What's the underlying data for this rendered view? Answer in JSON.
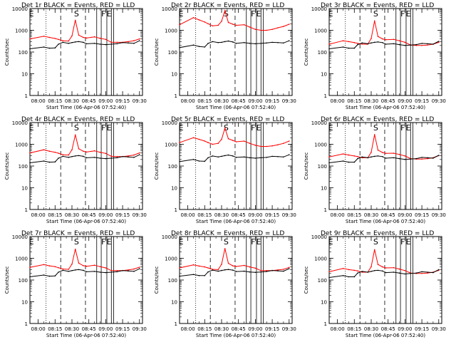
{
  "page": {
    "background": "#ffffff",
    "events_color": "#000000",
    "lld_color": "#ff0000"
  },
  "shared": {
    "title_suffix": "BLACK = Events, RED = LLD",
    "ylabel": "Counts/sec",
    "xlabel": "Start Time (06-Apr-06 07:52:40)",
    "x_tick_labels": [
      "08:00",
      "08:15",
      "08:30",
      "08:45",
      "09:00",
      "09:15",
      "09:30"
    ],
    "y_tick_labels": [
      "1",
      "10",
      "100",
      "1000",
      "10000"
    ],
    "markers": [
      "E",
      "S",
      "F",
      "E"
    ]
  },
  "chart_data": [
    {
      "type": "line",
      "title": "Det 1r BLACK = Events, RED = LLD",
      "ylabel": "Counts/sec",
      "xlabel": "Start Time (06-Apr-06 07:52:40)",
      "y_scale": "log",
      "ylim": [
        1,
        10000
      ],
      "xlim": [
        "07:52:40",
        "09:32:40"
      ],
      "x": [
        "07:52:40",
        "08:05",
        "08:10",
        "08:15",
        "08:18",
        "08:22",
        "08:27",
        "08:30",
        "08:33",
        "08:36",
        "08:40",
        "08:43",
        "08:50",
        "08:55",
        "09:00",
        "09:05",
        "09:10",
        "09:15",
        "09:20",
        "09:25",
        "09:30"
      ],
      "series": [
        {
          "name": "BLACK = Events",
          "values": [
            140,
            170,
            150,
            155,
            230,
            280,
            250,
            270,
            290,
            300,
            280,
            240,
            250,
            230,
            220,
            230,
            240,
            270,
            260,
            250,
            330
          ]
        },
        {
          "name": "RED = LLD",
          "values": [
            400,
            530,
            470,
            420,
            380,
            330,
            320,
            550,
            2900,
            600,
            470,
            440,
            500,
            430,
            380,
            280,
            280,
            280,
            300,
            330,
            400
          ]
        }
      ]
    },
    {
      "type": "line",
      "title": "Det 2r BLACK = Events, RED = LLD",
      "ylabel": "Counts/sec",
      "xlabel": "Start Time (06-Apr-06 07:52:40)",
      "y_scale": "log",
      "ylim": [
        1,
        10000
      ],
      "xlim": [
        "07:52:40",
        "09:32:40"
      ],
      "x": [
        "07:52:40",
        "08:05",
        "08:10",
        "08:15",
        "08:18",
        "08:22",
        "08:27",
        "08:30",
        "08:33",
        "08:36",
        "08:40",
        "08:43",
        "08:50",
        "08:55",
        "09:00",
        "09:05",
        "09:10",
        "09:15",
        "09:20",
        "09:25",
        "09:30"
      ],
      "series": [
        {
          "name": "BLACK = Events",
          "values": [
            160,
            210,
            180,
            170,
            250,
            300,
            270,
            280,
            300,
            320,
            290,
            250,
            270,
            250,
            240,
            250,
            260,
            280,
            270,
            260,
            330
          ]
        },
        {
          "name": "RED = LLD",
          "values": [
            1800,
            3800,
            3000,
            2400,
            2000,
            1600,
            1700,
            2600,
            8000,
            2300,
            1900,
            1700,
            1800,
            1400,
            1100,
            1000,
            1000,
            1100,
            1300,
            1500,
            1900
          ]
        }
      ]
    },
    {
      "type": "line",
      "title": "Det 3r BLACK = Events, RED = LLD",
      "ylabel": "Counts/sec",
      "xlabel": "Start Time (06-Apr-06 07:52:40)",
      "y_scale": "log",
      "ylim": [
        1,
        10000
      ],
      "xlim": [
        "07:52:40",
        "09:32:40"
      ],
      "x": [
        "07:52:40",
        "08:05",
        "08:10",
        "08:15",
        "08:18",
        "08:22",
        "08:27",
        "08:30",
        "08:33",
        "08:36",
        "08:40",
        "08:43",
        "08:50",
        "08:55",
        "09:00",
        "09:05",
        "09:10",
        "09:15",
        "09:20",
        "09:25",
        "09:30"
      ],
      "series": [
        {
          "name": "BLACK = Events",
          "values": [
            140,
            170,
            150,
            150,
            220,
            260,
            240,
            260,
            280,
            290,
            270,
            230,
            240,
            220,
            200,
            210,
            220,
            250,
            240,
            230,
            310
          ]
        },
        {
          "name": "RED = LLD",
          "values": [
            230,
            330,
            300,
            270,
            250,
            230,
            230,
            420,
            2700,
            520,
            400,
            370,
            380,
            330,
            280,
            210,
            200,
            200,
            210,
            230,
            280
          ]
        }
      ]
    },
    {
      "type": "line",
      "title": "Det 4r BLACK = Events, RED = LLD",
      "ylabel": "Counts/sec",
      "xlabel": "Start Time (06-Apr-06 07:52:40)",
      "y_scale": "log",
      "ylim": [
        1,
        10000
      ],
      "xlim": [
        "07:52:40",
        "09:32:40"
      ],
      "x": [
        "07:52:40",
        "08:05",
        "08:10",
        "08:15",
        "08:18",
        "08:22",
        "08:27",
        "08:30",
        "08:33",
        "08:36",
        "08:40",
        "08:43",
        "08:50",
        "08:55",
        "09:00",
        "09:05",
        "09:10",
        "09:15",
        "09:20",
        "09:25",
        "09:30"
      ],
      "series": [
        {
          "name": "BLACK = Events",
          "values": [
            140,
            170,
            150,
            155,
            230,
            280,
            250,
            270,
            290,
            300,
            280,
            240,
            250,
            230,
            220,
            230,
            240,
            270,
            260,
            250,
            330
          ]
        },
        {
          "name": "RED = LLD",
          "values": [
            400,
            560,
            480,
            430,
            390,
            330,
            320,
            560,
            2700,
            620,
            480,
            440,
            500,
            430,
            380,
            280,
            270,
            270,
            290,
            320,
            400
          ]
        }
      ]
    },
    {
      "type": "line",
      "title": "Det 5r BLACK = Events, RED = LLD",
      "ylabel": "Counts/sec",
      "xlabel": "Start Time (06-Apr-06 07:52:40)",
      "y_scale": "log",
      "ylim": [
        1,
        10000
      ],
      "xlim": [
        "07:52:40",
        "09:32:40"
      ],
      "x": [
        "07:52:40",
        "08:05",
        "08:10",
        "08:15",
        "08:18",
        "08:22",
        "08:27",
        "08:30",
        "08:33",
        "08:36",
        "08:40",
        "08:43",
        "08:50",
        "08:55",
        "09:00",
        "09:05",
        "09:10",
        "09:15",
        "09:20",
        "09:25",
        "09:30"
      ],
      "series": [
        {
          "name": "BLACK = Events",
          "values": [
            160,
            200,
            170,
            165,
            240,
            290,
            260,
            280,
            300,
            320,
            290,
            250,
            260,
            240,
            230,
            240,
            250,
            280,
            270,
            260,
            330
          ]
        },
        {
          "name": "RED = LLD",
          "values": [
            1200,
            2000,
            1700,
            1400,
            1200,
            1000,
            1100,
            1700,
            5500,
            1800,
            1500,
            1300,
            1400,
            1100,
            900,
            800,
            800,
            850,
            950,
            1100,
            1400
          ]
        }
      ]
    },
    {
      "type": "line",
      "title": "Det 6r BLACK = Events, RED = LLD",
      "ylabel": "Counts/sec",
      "xlabel": "Start Time (06-Apr-06 07:52:40)",
      "y_scale": "log",
      "ylim": [
        1,
        10000
      ],
      "xlim": [
        "07:52:40",
        "09:32:40"
      ],
      "x": [
        "07:52:40",
        "08:05",
        "08:10",
        "08:15",
        "08:18",
        "08:22",
        "08:27",
        "08:30",
        "08:33",
        "08:36",
        "08:40",
        "08:43",
        "08:50",
        "08:55",
        "09:00",
        "09:05",
        "09:10",
        "09:15",
        "09:20",
        "09:25",
        "09:30"
      ],
      "series": [
        {
          "name": "BLACK = Events",
          "values": [
            140,
            170,
            150,
            150,
            220,
            260,
            240,
            260,
            280,
            290,
            270,
            230,
            240,
            220,
            200,
            210,
            220,
            250,
            240,
            230,
            310
          ]
        },
        {
          "name": "RED = LLD",
          "values": [
            260,
            360,
            320,
            290,
            270,
            240,
            240,
            430,
            2800,
            540,
            420,
            380,
            390,
            340,
            290,
            220,
            210,
            210,
            220,
            240,
            300
          ]
        }
      ]
    },
    {
      "type": "line",
      "title": "Det 7r BLACK = Events, RED = LLD",
      "ylabel": "Counts/sec",
      "xlabel": "Start Time (06-Apr-06 07:52:40)",
      "y_scale": "log",
      "ylim": [
        1,
        10000
      ],
      "xlim": [
        "07:52:40",
        "09:32:40"
      ],
      "x": [
        "07:52:40",
        "08:05",
        "08:10",
        "08:15",
        "08:18",
        "08:22",
        "08:27",
        "08:30",
        "08:33",
        "08:36",
        "08:40",
        "08:43",
        "08:50",
        "08:55",
        "09:00",
        "09:05",
        "09:10",
        "09:15",
        "09:20",
        "09:25",
        "09:30"
      ],
      "series": [
        {
          "name": "BLACK = Events",
          "values": [
            140,
            170,
            150,
            155,
            230,
            280,
            250,
            270,
            290,
            300,
            280,
            240,
            250,
            230,
            220,
            230,
            240,
            270,
            260,
            250,
            330
          ]
        },
        {
          "name": "RED = LLD",
          "values": [
            380,
            510,
            450,
            410,
            370,
            320,
            310,
            540,
            2600,
            600,
            460,
            430,
            480,
            410,
            360,
            270,
            270,
            270,
            290,
            320,
            390
          ]
        }
      ]
    },
    {
      "type": "line",
      "title": "Det 8r BLACK = Events, RED = LLD",
      "ylabel": "Counts/sec",
      "xlabel": "Start Time (06-Apr-06 07:52:40)",
      "y_scale": "log",
      "ylim": [
        1,
        10000
      ],
      "xlim": [
        "07:52:40",
        "09:32:40"
      ],
      "x": [
        "07:52:40",
        "08:05",
        "08:10",
        "08:15",
        "08:18",
        "08:22",
        "08:27",
        "08:30",
        "08:33",
        "08:36",
        "08:40",
        "08:43",
        "08:50",
        "08:55",
        "09:00",
        "09:05",
        "09:10",
        "09:15",
        "09:20",
        "09:25",
        "09:30"
      ],
      "series": [
        {
          "name": "BLACK = Events",
          "values": [
            150,
            180,
            160,
            160,
            235,
            285,
            255,
            275,
            295,
            305,
            285,
            245,
            255,
            235,
            225,
            235,
            245,
            275,
            265,
            255,
            335
          ]
        },
        {
          "name": "RED = LLD",
          "values": [
            360,
            500,
            440,
            400,
            360,
            310,
            300,
            530,
            2800,
            590,
            450,
            420,
            470,
            400,
            350,
            270,
            270,
            270,
            290,
            310,
            380
          ]
        }
      ]
    },
    {
      "type": "line",
      "title": "Det 9r BLACK = Events, RED = LLD",
      "ylabel": "Counts/sec",
      "xlabel": "Start Time (06-Apr-06 07:52:40)",
      "y_scale": "log",
      "ylim": [
        1,
        10000
      ],
      "xlim": [
        "07:52:40",
        "09:32:40"
      ],
      "x": [
        "07:52:40",
        "08:05",
        "08:10",
        "08:15",
        "08:18",
        "08:22",
        "08:27",
        "08:30",
        "08:33",
        "08:36",
        "08:40",
        "08:43",
        "08:50",
        "08:55",
        "09:00",
        "09:05",
        "09:10",
        "09:15",
        "09:20",
        "09:25",
        "09:30"
      ],
      "series": [
        {
          "name": "BLACK = Events",
          "values": [
            130,
            160,
            140,
            140,
            210,
            250,
            230,
            250,
            270,
            280,
            260,
            220,
            230,
            210,
            190,
            200,
            210,
            240,
            230,
            220,
            300
          ]
        },
        {
          "name": "RED = LLD",
          "values": [
            240,
            340,
            300,
            280,
            260,
            230,
            230,
            410,
            2500,
            520,
            400,
            360,
            370,
            320,
            270,
            210,
            200,
            200,
            210,
            230,
            280
          ]
        }
      ]
    }
  ]
}
